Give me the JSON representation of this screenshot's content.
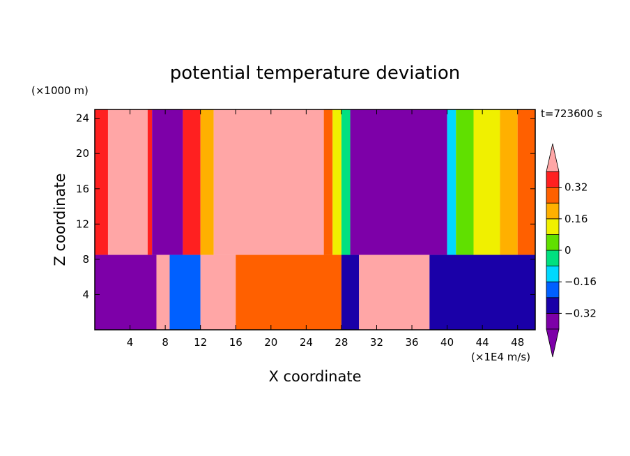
{
  "chart_data": {
    "type": "heatmap",
    "title": "potential temperature deviation",
    "xlabel": "X coordinate",
    "ylabel": "Z coordinate",
    "x_unit": "(×1E4 m/s)",
    "y_unit": "(×1000 m)",
    "time_label": "t=723600 s",
    "xlim": [
      0,
      50
    ],
    "ylim": [
      0,
      25
    ],
    "x_ticks": [
      4,
      8,
      12,
      16,
      20,
      24,
      28,
      32,
      36,
      40,
      44,
      48
    ],
    "y_ticks": [
      4,
      8,
      12,
      16,
      20,
      24
    ],
    "colorbar": {
      "levels": [
        -0.4,
        -0.32,
        -0.24,
        -0.16,
        -0.08,
        0,
        0.08,
        0.16,
        0.24,
        0.32,
        0.4
      ],
      "labels": [
        "0.32",
        "0.16",
        "0",
        "−0.16",
        "−0.32"
      ],
      "label_values": [
        0.32,
        0.16,
        0,
        -0.16,
        -0.32
      ],
      "colors": [
        "#7d00a8",
        "#1a00a8",
        "#0060ff",
        "#00d8ff",
        "#00e080",
        "#60e000",
        "#f0f000",
        "#ffb000",
        "#ff6000",
        "#ff2020",
        "#ffa6a6"
      ],
      "extend": "both"
    },
    "columns_upper": [
      {
        "x0": 0,
        "x1": 1.5,
        "level": 9
      },
      {
        "x0": 1.5,
        "x1": 6,
        "level": 10
      },
      {
        "x0": 6,
        "x1": 6.5,
        "level": 9
      },
      {
        "x0": 6.5,
        "x1": 10,
        "level": 0
      },
      {
        "x0": 10,
        "x1": 12,
        "level": 9
      },
      {
        "x0": 12,
        "x1": 13.5,
        "level": 7
      },
      {
        "x0": 13.5,
        "x1": 26,
        "level": 10
      },
      {
        "x0": 26,
        "x1": 27,
        "level": 8
      },
      {
        "x0": 27,
        "x1": 28,
        "level": 6
      },
      {
        "x0": 28,
        "x1": 29,
        "level": 4
      },
      {
        "x0": 29,
        "x1": 40,
        "level": 0
      },
      {
        "x0": 40,
        "x1": 41,
        "level": 3
      },
      {
        "x0": 41,
        "x1": 43,
        "level": 5
      },
      {
        "x0": 43,
        "x1": 46,
        "level": 6
      },
      {
        "x0": 46,
        "x1": 48,
        "level": 7
      },
      {
        "x0": 48,
        "x1": 50,
        "level": 8
      }
    ],
    "columns_lower": [
      {
        "x0": 0,
        "x1": 7,
        "level": 0
      },
      {
        "x0": 7,
        "x1": 8.5,
        "level": 10
      },
      {
        "x0": 8.5,
        "x1": 12,
        "level": 2
      },
      {
        "x0": 12,
        "x1": 16,
        "level": 10
      },
      {
        "x0": 16,
        "x1": 28,
        "level": 8
      },
      {
        "x0": 28,
        "x1": 30,
        "level": 1
      },
      {
        "x0": 30,
        "x1": 38,
        "level": 10
      },
      {
        "x0": 38,
        "x1": 50,
        "level": 1
      }
    ],
    "interface_z": 8.5
  }
}
